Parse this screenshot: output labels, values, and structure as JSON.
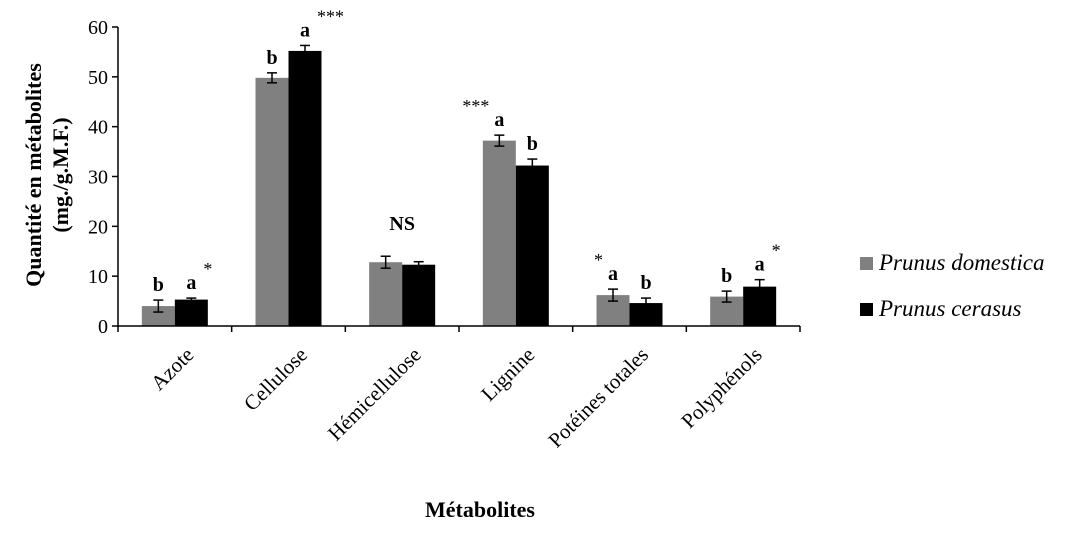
{
  "chart_data": {
    "type": "bar",
    "categories": [
      "Azote",
      "Cellulose",
      "Hémicellulose",
      "Lignine",
      "Potéines totales",
      "Polyphénols"
    ],
    "series": [
      {
        "name": "Prunus domestica",
        "color": "#808080",
        "values": [
          4.0,
          49.8,
          12.8,
          37.2,
          6.2,
          5.9
        ],
        "errors": [
          1.2,
          1.0,
          1.2,
          1.1,
          1.2,
          1.1
        ]
      },
      {
        "name": "Prunus cerasus",
        "color": "#000000",
        "values": [
          5.3,
          55.2,
          12.3,
          32.2,
          4.6,
          7.9
        ],
        "errors": [
          0.3,
          1.1,
          0.6,
          1.3,
          1.0,
          1.4
        ]
      }
    ],
    "annotations": [
      {
        "category": 0,
        "series": 0,
        "text": "b"
      },
      {
        "category": 0,
        "series": 1,
        "text": "a",
        "star": "*"
      },
      {
        "category": 1,
        "series": 0,
        "text": "b"
      },
      {
        "category": 1,
        "series": 1,
        "text": "a",
        "star": "***"
      },
      {
        "category": 2,
        "group_text": "NS"
      },
      {
        "category": 3,
        "series": 0,
        "text": "a",
        "star_left": "***"
      },
      {
        "category": 3,
        "series": 1,
        "text": "b"
      },
      {
        "category": 4,
        "series": 0,
        "text": "a",
        "star_left": "*"
      },
      {
        "category": 4,
        "series": 1,
        "text": "b"
      },
      {
        "category": 5,
        "series": 0,
        "text": "b"
      },
      {
        "category": 5,
        "series": 1,
        "text": "a",
        "star": "*"
      }
    ],
    "xlabel": "Métabolites",
    "ylabel_line1": "Quantité en métabolites",
    "ylabel_line2": "(mg./g.M.F.)",
    "ylim": [
      0,
      60
    ],
    "yticks": [
      0,
      10,
      20,
      30,
      40,
      50,
      60
    ],
    "grid": false,
    "legend_position": "right"
  }
}
